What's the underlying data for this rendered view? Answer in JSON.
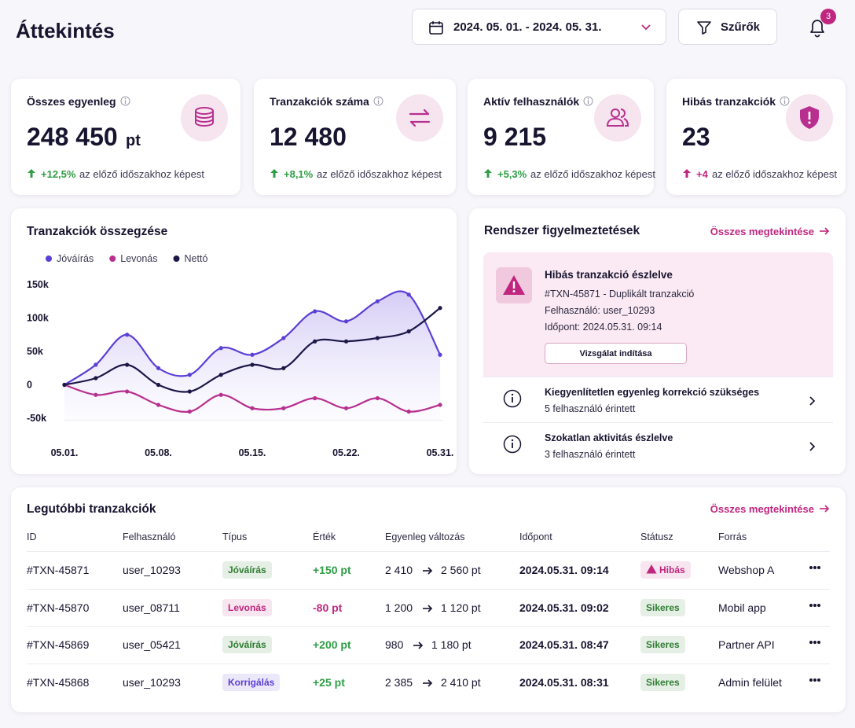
{
  "header": {
    "title": "Áttekintés",
    "date_range": "2024. 05. 01. - 2024. 05. 31.",
    "filter_button": "Szűrők",
    "notification_count": 3
  },
  "kpis": [
    {
      "label": "Összes egyenleg",
      "value": "248 450",
      "unit": "pt",
      "change": "+12,5%",
      "comparison": "az előző időszakhoz képest",
      "change_color": "#2e9e44"
    },
    {
      "label": "Tranzakciók száma",
      "value": "12 480",
      "change": "+8,1%",
      "comparison": "az előző időszakhoz képest",
      "change_color": "#2e9e44"
    },
    {
      "label": "Aktív felhasználók",
      "value": "9 215",
      "change": "+5,3%",
      "comparison": "az előző időszakhoz képest",
      "change_color": "#2e9e44"
    },
    {
      "label": "Hibás tranzakciók",
      "value": "23",
      "change": "+4",
      "comparison": "az előző időszakhoz képest",
      "change_color": "#c0267f"
    }
  ],
  "chart_data": {
    "type": "line",
    "title": "Tranzakciók összegzése",
    "categories": [
      "05.01.",
      null,
      null,
      "05.08.",
      null,
      null,
      "05.15.",
      null,
      null,
      "05.22.",
      null,
      null,
      "05.31."
    ],
    "series": [
      {
        "name": "Jóváírás",
        "color": "#5b3fd6",
        "values": [
          0,
          30000,
          75000,
          25000,
          15000,
          55000,
          45000,
          70000,
          110000,
          95000,
          125000,
          135000,
          45000
        ]
      },
      {
        "name": "Levonás",
        "color": "#b8308f",
        "values": [
          0,
          -15000,
          -10000,
          -30000,
          -40000,
          -15000,
          -35000,
          -35000,
          -20000,
          -35000,
          -20000,
          -40000,
          -30000
        ]
      },
      {
        "name": "Nettó",
        "color": "#1b1747",
        "values": [
          0,
          10000,
          30000,
          0,
          -10000,
          15000,
          30000,
          25000,
          65000,
          65000,
          70000,
          80000,
          115000
        ]
      }
    ],
    "ylim": [
      -60000,
      160000
    ],
    "yticks": [
      {
        "value": 150000,
        "label": "150k"
      },
      {
        "value": 100000,
        "label": "100k"
      },
      {
        "value": 50000,
        "label": "50k"
      },
      0,
      {
        "value": -50000,
        "label": "-50k"
      }
    ],
    "legend": "top-left",
    "grid": false
  },
  "alerts": {
    "title": "Rendszer figyelmeztetések",
    "view_all": "Összes megtekintése",
    "color": "#c0267f",
    "featured": {
      "title": "Hibás tranzakció észlelve",
      "lines": [
        "#TXN-45871 - Duplikált tranzakció",
        "Felhasználó: user_10293",
        "Időpont: 2024.05.31. 09:14"
      ],
      "button": "Vizsgálat indítása"
    },
    "items": [
      {
        "title": "Kiegyenlítetlen egyenleg korrekció szükséges",
        "subtitle": "5 felhasználó érintett"
      },
      {
        "title": "Szokatlan aktivitás észlelve",
        "subtitle": "3 felhasználó érintett"
      }
    ]
  },
  "transactions": {
    "title": "Legutóbbi tranzakciók",
    "view_all": "Összes megtekintése",
    "columns": [
      "ID",
      "Felhasználó",
      "Típus",
      "Érték",
      "Egyenleg változás",
      "Időpont",
      "Státusz",
      "Forrás"
    ],
    "rows": [
      {
        "id": "#TXN-45871",
        "user": "user_10293",
        "type": "Jóváírás",
        "type_color": "#2e7d32",
        "value": "+150 pt",
        "value_color": "#2e9e44",
        "balance_from": "2 410",
        "balance_to": "2 560 pt",
        "time": "2024.05.31. 09:14",
        "status": "Hibás",
        "status_color": "#c0267f",
        "source": "Webshop A"
      },
      {
        "id": "#TXN-45870",
        "user": "user_08711",
        "type": "Levonás",
        "type_color": "#c0267f",
        "value": "-80 pt",
        "value_color": "#c0267f",
        "balance_from": "1 200",
        "balance_to": "1 120 pt",
        "time": "2024.05.31. 09:02",
        "status": "Sikeres",
        "status_color": "#2e7d32",
        "source": "Mobil app"
      },
      {
        "id": "#TXN-45869",
        "user": "user_05421",
        "type": "Jóváírás",
        "type_color": "#2e7d32",
        "value": "+200 pt",
        "value_color": "#2e9e44",
        "balance_from": "980",
        "balance_to": "1 180 pt",
        "time": "2024.05.31. 08:47",
        "status": "Sikeres",
        "status_color": "#2e7d32",
        "source": "Partner API"
      },
      {
        "id": "#TXN-45868",
        "user": "user_10293",
        "type": "Korrigálás",
        "type_color": "#5b3fd6",
        "value": "+25 pt",
        "value_color": "#2e9e44",
        "balance_from": "2 385",
        "balance_to": "2 410 pt",
        "time": "2024.05.31. 08:31",
        "status": "Sikeres",
        "status_color": "#2e7d32",
        "source": "Admin felület"
      }
    ]
  }
}
